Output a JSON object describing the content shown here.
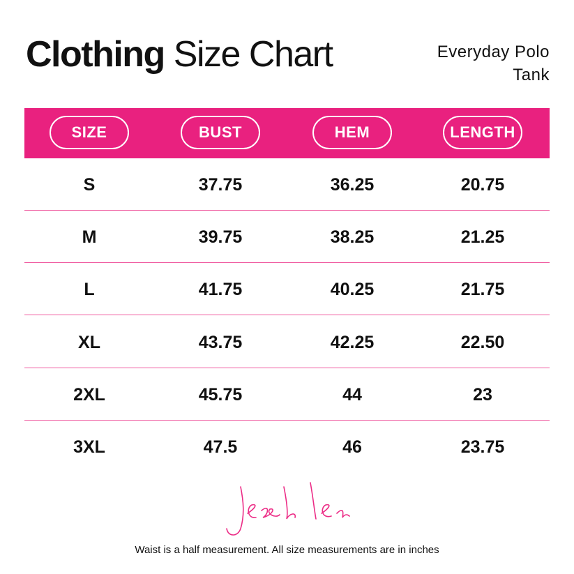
{
  "header": {
    "title_bold": "Clothing",
    "title_rest": "Size Chart",
    "product": "Everyday Polo Tank"
  },
  "table": {
    "columns": [
      "SIZE",
      "BUST",
      "HEM",
      "LENGTH"
    ],
    "rows": [
      [
        "S",
        "37.75",
        "36.25",
        "20.75"
      ],
      [
        "M",
        "39.75",
        "38.25",
        "21.25"
      ],
      [
        "L",
        "41.75",
        "40.25",
        "21.75"
      ],
      [
        "XL",
        "43.75",
        "42.25",
        "22.50"
      ],
      [
        "2XL",
        "45.75",
        "44",
        "23"
      ],
      [
        "3XL",
        "47.5",
        "46",
        "23.75"
      ]
    ]
  },
  "footer": {
    "note": "Waist is a half measurement. All size measurements are in inches"
  }
}
